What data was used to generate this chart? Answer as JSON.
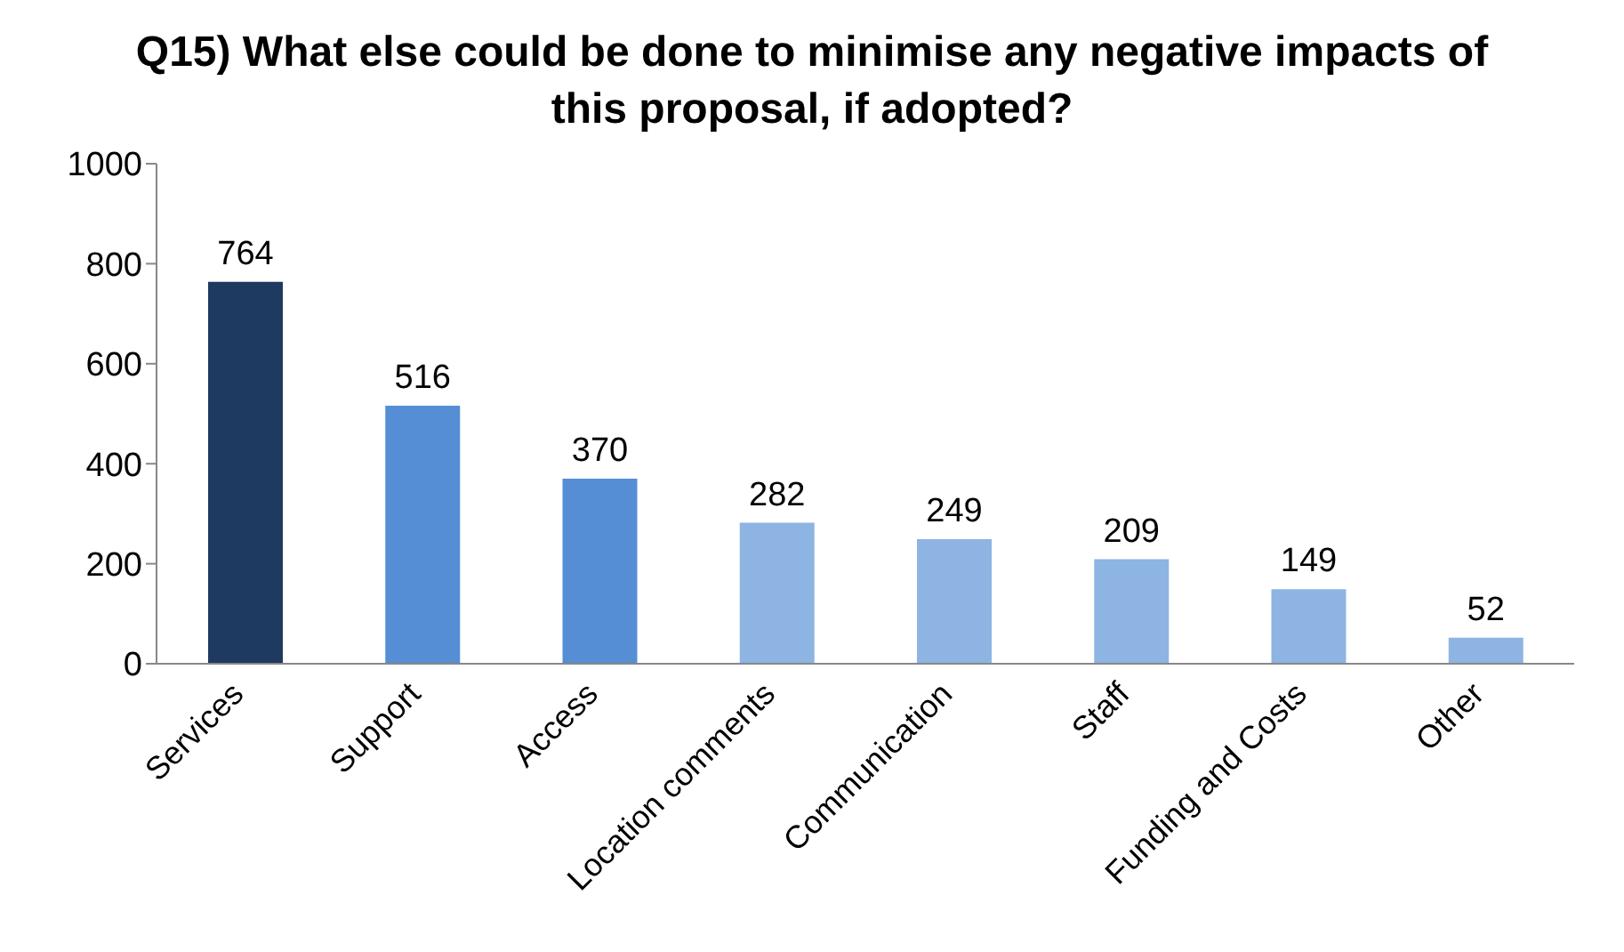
{
  "chart_data": {
    "type": "bar",
    "title": "Q15) What else could be done to minimise any negative impacts of this proposal, if adopted?",
    "categories": [
      "Services",
      "Support",
      "Access",
      "Location comments",
      "Communication",
      "Staff",
      "Funding and Costs",
      "Other"
    ],
    "values": [
      764,
      516,
      370,
      282,
      249,
      209,
      149,
      52
    ],
    "colors": [
      "#1f3a60",
      "#558ed5",
      "#558ed5",
      "#8db4e2",
      "#8db4e2",
      "#8db4e2",
      "#8db4e2",
      "#8db4e2"
    ],
    "ylim": [
      0,
      1000
    ],
    "yticks": [
      0,
      200,
      400,
      600,
      800,
      1000
    ],
    "data_labels": true,
    "grid": false,
    "legend": false
  }
}
